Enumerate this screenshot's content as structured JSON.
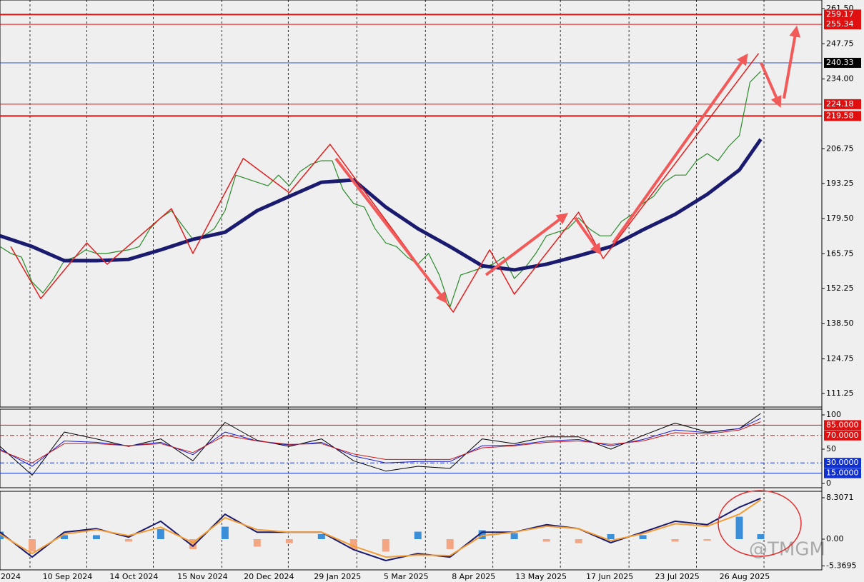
{
  "chart_data": [
    {
      "type": "line",
      "xlim": [
        0,
        76.7
      ],
      "ylim": [
        105.95,
        264.85
      ],
      "yticks": [
        {
          "value": 261.5,
          "label": "261.50"
        },
        247.75,
        {
          "value": 234,
          "label": "234.00"
        },
        206.75,
        193.25,
        {
          "value": 179.5,
          "label": "179.50"
        },
        165.75,
        152.25,
        {
          "value": 138.5,
          "label": "138.50"
        },
        124.75,
        111.25
      ],
      "xticks": [
        {
          "value": 2.8,
          "label": "2024"
        },
        {
          "value": 8.1,
          "label": "10 Sep 2024"
        },
        {
          "value": 14.3,
          "label": "14 Oct 2024"
        },
        {
          "value": 20.7,
          "label": "15 Nov 2024"
        },
        {
          "value": 26.9,
          "label": "20 Dec 2024"
        },
        {
          "value": 33.3,
          "label": "29 Jan 2025"
        },
        {
          "value": 39.7,
          "label": "5 Mar 2025"
        },
        {
          "value": 46,
          "label": "8 Apr 2025"
        },
        {
          "value": 52.3,
          "label": "13 May 2025"
        },
        {
          "value": 58.7,
          "label": "17 Jun 2025"
        },
        {
          "value": 65,
          "label": "23 Jul 2025"
        },
        {
          "value": 71.3,
          "label": "26 Aug 2025"
        }
      ],
      "hlines": [
        {
          "value": 259.17,
          "color": "#e01010",
          "box": "#e01010",
          "width": 2
        },
        {
          "value": 255.34,
          "color": "#e01010",
          "box": "#e01010",
          "width": 1
        },
        {
          "value": 240.33,
          "color": "#3050d0",
          "box": "#000000",
          "width": 1
        },
        {
          "value": 224.18,
          "color": "#e01010",
          "box": "#e01010",
          "width": 1
        },
        {
          "value": 219.58,
          "color": "#e01010",
          "box": "#e01010",
          "width": 2
        }
      ],
      "series": [
        {
          "color": "#2a8a2a",
          "width": 1.2,
          "values": [
            168.6,
            165.9,
            164.5,
            154.7,
            150.5,
            156.1,
            163.1,
            164.5,
            167.3,
            165.9,
            165.9,
            166.7,
            167.3,
            168.6,
            175.6,
            179.8,
            182.6,
            177.0,
            171.4,
            172.8,
            175.6,
            182.6,
            196.5,
            195.1,
            193.7,
            192.3,
            196.5,
            192.3,
            197.9,
            200.7,
            202.1,
            202.1,
            190.9,
            185.4,
            184.0,
            175.6,
            170.0,
            168.6,
            164.5,
            161.7,
            165.9,
            157.5,
            145.0,
            157.5,
            158.9,
            160.3,
            161.7,
            164.5,
            156.1,
            160.3,
            165.9,
            172.8,
            174.2,
            175.6,
            179.8,
            175.6,
            172.8,
            172.8,
            178.4,
            181.2,
            185.4,
            188.2,
            193.7,
            196.5,
            196.5,
            202.1,
            204.9,
            202.1,
            207.7,
            211.9,
            232.8,
            237.0
          ]
        },
        {
          "color": "#1a1a6e",
          "width": 5,
          "x": [
            0,
            3,
            6,
            9,
            12,
            15,
            18,
            21,
            24,
            27,
            30,
            33,
            36,
            39,
            42,
            45,
            48,
            51,
            54,
            57,
            60,
            63,
            66,
            69,
            71
          ],
          "values": [
            172.8,
            168.6,
            163.1,
            163.1,
            163.6,
            167.3,
            171.4,
            174.2,
            182.6,
            188.2,
            193.7,
            194.6,
            184.0,
            175.6,
            168.6,
            161.1,
            159.5,
            161.7,
            165.0,
            168.6,
            175.1,
            181.2,
            189.0,
            198.5,
            210.5
          ]
        },
        {
          "color": "#e02020",
          "width": 1.5,
          "x": [
            1,
            3.8,
            8.1,
            10,
            16,
            18,
            22.7,
            27,
            30.8,
            42.3,
            45.7,
            48,
            54,
            56.3,
            70.8
          ],
          "values": [
            168.6,
            148.3,
            170.0,
            161.7,
            183.4,
            165.9,
            203.0,
            189.6,
            208.5,
            143.0,
            167.3,
            150.0,
            182.0,
            163.9,
            244.0
          ]
        }
      ]
    },
    {
      "type": "line",
      "xlim": [
        0,
        76.7
      ],
      "ylim": [
        -6.25,
        108.3
      ],
      "yticks": [
        100,
        50,
        0
      ],
      "hlines": [
        {
          "value": 85,
          "label": "85.0000",
          "color": "#e01010",
          "box": "#e01010",
          "width": 1
        },
        {
          "value": 70,
          "label": "70.0000",
          "color": "#e01010",
          "box": "#e01010",
          "width": 1,
          "dash": "6 3 2 3"
        },
        {
          "value": 30,
          "label": "30.0000",
          "color": "#1030d0",
          "box": "#1030d0",
          "width": 1,
          "dash": "6 3 2 3"
        },
        {
          "value": 15,
          "label": "15.0000",
          "color": "#1030d0",
          "box": "#1030d0",
          "width": 1
        }
      ],
      "x": [
        0,
        3,
        6,
        9,
        12,
        15,
        18,
        21,
        24,
        27,
        30,
        33,
        36,
        39,
        42,
        45,
        48,
        51,
        54,
        57,
        60,
        63,
        66,
        69,
        71
      ],
      "series": [
        {
          "color": "#000000",
          "width": 1,
          "values": [
            54,
            12,
            75,
            65,
            54,
            65,
            33,
            89,
            63,
            54,
            65,
            33,
            18,
            25,
            22,
            65,
            58,
            68,
            68,
            50,
            70,
            88,
            75,
            80,
            102
          ]
        },
        {
          "color": "#1a1acc",
          "width": 1,
          "values": [
            50,
            25,
            62,
            60,
            55,
            60,
            42,
            75,
            62,
            56,
            60,
            40,
            30,
            32,
            32,
            55,
            56,
            62,
            64,
            55,
            64,
            78,
            74,
            80,
            95
          ]
        },
        {
          "color": "#cc1a1a",
          "width": 1,
          "values": [
            48,
            30,
            58,
            58,
            55,
            58,
            45,
            70,
            62,
            57,
            58,
            43,
            35,
            35,
            35,
            52,
            55,
            60,
            62,
            57,
            62,
            74,
            72,
            78,
            90
          ]
        }
      ]
    },
    {
      "type": "combo",
      "xlim": [
        0,
        76.7
      ],
      "ylim": [
        -6.16,
        9.6
      ],
      "yticks": [
        {
          "value": 8.3071,
          "label": "8.3071"
        },
        {
          "value": 0,
          "label": "0.00"
        },
        {
          "value": -5.3695,
          "label": "-5.3695"
        }
      ],
      "x": [
        0,
        3,
        6,
        9,
        12,
        15,
        18,
        21,
        24,
        27,
        30,
        33,
        36,
        39,
        42,
        45,
        48,
        51,
        54,
        57,
        60,
        63,
        66,
        69,
        71
      ],
      "watermark": "@TMGM",
      "series": [
        {
          "kind": "bar",
          "colors": {
            "positive": "#3a8fd8",
            "negative": "#f4a582"
          },
          "values": [
            1.5,
            -2.5,
            0.8,
            0.8,
            -0.5,
            2.0,
            -2.0,
            2.5,
            -1.5,
            -0.8,
            1.0,
            -2.0,
            -2.5,
            1.5,
            -2.0,
            1.8,
            1.2,
            -0.5,
            -0.8,
            1.0,
            0.8,
            -0.5,
            -0.3,
            4.5,
            1.0
          ]
        },
        {
          "kind": "line",
          "color": "#1a1a6e",
          "width": 2,
          "values": [
            1.4,
            -3.6,
            1.4,
            2.1,
            0.4,
            3.6,
            -1.4,
            5.0,
            1.4,
            1.4,
            1.4,
            -2.1,
            -4.3,
            -2.9,
            -3.6,
            1.4,
            1.4,
            2.9,
            2.1,
            -0.7,
            1.4,
            3.6,
            2.9,
            6.4,
            8.2
          ]
        },
        {
          "kind": "line",
          "color": "#f39c34",
          "width": 2,
          "values": [
            1.0,
            -2.9,
            1.0,
            1.9,
            0.7,
            2.4,
            -0.7,
            4.3,
            1.9,
            1.4,
            1.4,
            -1.4,
            -3.6,
            -3.2,
            -3.3,
            0.7,
            1.4,
            2.6,
            2.1,
            -0.3,
            1.1,
            3.1,
            2.6,
            5.0,
            7.9
          ]
        }
      ]
    }
  ]
}
